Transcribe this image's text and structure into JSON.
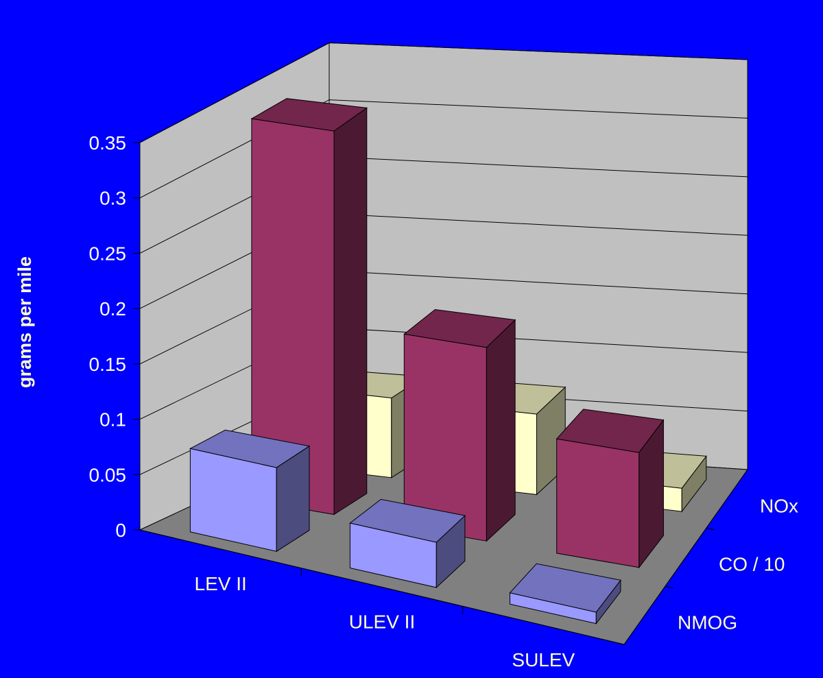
{
  "chart_data": {
    "type": "bar",
    "subtype": "3d-column",
    "title": "",
    "ylabel": "grams per mile",
    "xlabel": "",
    "categories": [
      "LEV II",
      "ULEV II",
      "SULEV"
    ],
    "series": [
      {
        "name": "NMOG",
        "values": [
          0.075,
          0.04,
          0.01
        ]
      },
      {
        "name": "CO / 10",
        "values": [
          0.34,
          0.17,
          0.1
        ]
      },
      {
        "name": "NOx",
        "values": [
          0.07,
          0.07,
          0.02
        ]
      }
    ],
    "ylim": [
      0,
      0.35
    ],
    "yticks": [
      "0",
      "0.05",
      "0.1",
      "0.15",
      "0.2",
      "0.25",
      "0.3",
      "0.35"
    ],
    "grid": true,
    "legend": "none",
    "colors": {
      "background": "#0000ff",
      "walls": "#c0c0c0",
      "floor": "#808080",
      "NMOG": "#9999ff",
      "CO / 10": "#993366",
      "NOx": "#ffffcc",
      "label_text": "#ffffcc",
      "tick_text": "#ffffff"
    }
  }
}
